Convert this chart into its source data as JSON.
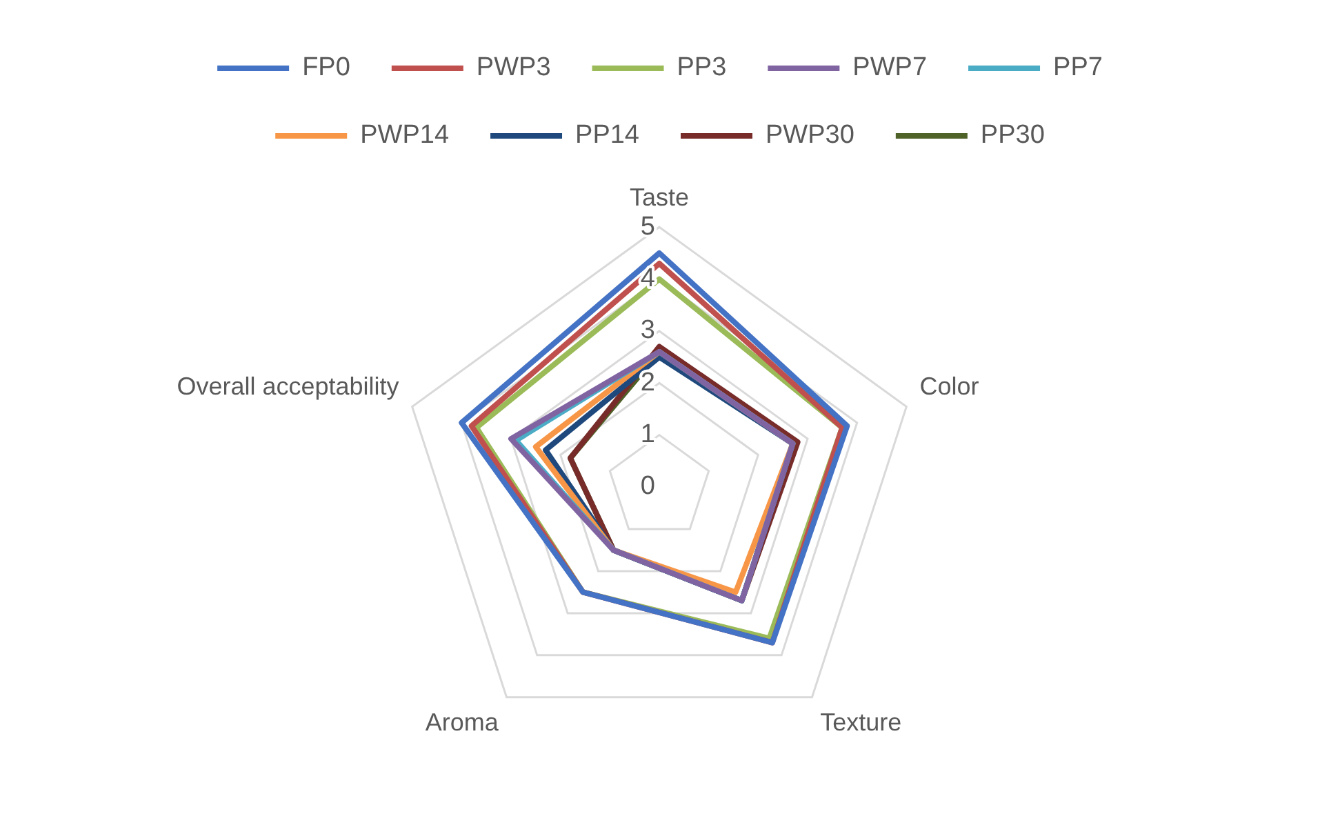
{
  "chart_data": {
    "type": "radar",
    "categories": [
      "Taste",
      "Color",
      "Texture",
      "Aroma",
      "Overall acceptability"
    ],
    "series": [
      {
        "name": "FP0",
        "color": "#4472c4",
        "values": [
          4.5,
          3.8,
          3.7,
          2.5,
          4.0
        ]
      },
      {
        "name": "PWP3",
        "color": "#c0504d",
        "values": [
          4.3,
          3.7,
          3.7,
          2.5,
          3.8
        ]
      },
      {
        "name": "PP3",
        "color": "#9bbb59",
        "values": [
          4.0,
          3.7,
          3.6,
          2.5,
          3.7
        ]
      },
      {
        "name": "PWP7",
        "color": "#8064a2",
        "values": [
          2.6,
          2.7,
          2.7,
          1.5,
          3.0
        ]
      },
      {
        "name": "PP7",
        "color": "#4bacc6",
        "values": [
          2.6,
          2.7,
          2.7,
          1.5,
          2.9
        ]
      },
      {
        "name": "PWP14",
        "color": "#f79646",
        "values": [
          2.6,
          2.7,
          2.5,
          1.5,
          2.5
        ]
      },
      {
        "name": "PP14",
        "color": "#1f497d",
        "values": [
          2.5,
          2.7,
          2.7,
          1.5,
          2.3
        ]
      },
      {
        "name": "PWP30",
        "color": "#772c2a",
        "values": [
          2.7,
          2.8,
          2.7,
          1.5,
          1.8
        ]
      },
      {
        "name": "PP30",
        "color": "#4f6228",
        "values": [
          2.6,
          2.7,
          2.7,
          1.5,
          1.8
        ]
      }
    ],
    "ylim": [
      0,
      5
    ],
    "yticks": [
      0,
      1,
      2,
      3,
      4,
      5
    ],
    "grid": true,
    "legend": "top",
    "marker": "none"
  }
}
